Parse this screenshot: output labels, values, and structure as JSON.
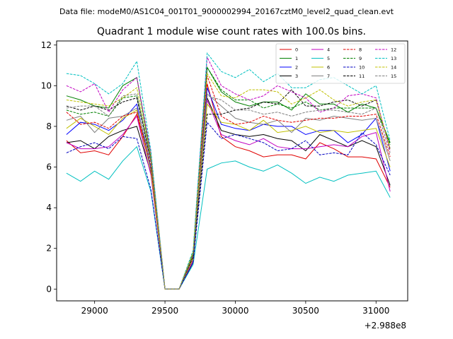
{
  "header": {
    "file_line": "Data file: modeM0/AS1C04_001T01_9000002994_20167cztM0_level2_quad_clean.evt"
  },
  "chart_data": {
    "type": "line",
    "title": "Quadrant 1 module wise count rates with 100.0s bins.",
    "xlabel": "",
    "ylabel": "",
    "x_offset_label": "+2.988e8",
    "xlim": [
      28730,
      31225
    ],
    "ylim": [
      -0.58,
      12.2
    ],
    "xticks": [
      29000,
      29500,
      30000,
      30500,
      31000
    ],
    "xtick_labels": [
      "29000",
      "29500",
      "30000",
      "30500",
      "31000"
    ],
    "yticks": [
      0,
      2,
      4,
      6,
      8,
      10,
      12
    ],
    "ytick_labels": [
      "0",
      "2",
      "4",
      "6",
      "8",
      "10",
      "12"
    ],
    "grid": false,
    "legend_position": "top-right",
    "x": [
      28800,
      28900,
      29000,
      29100,
      29200,
      29300,
      29400,
      29500,
      29600,
      29700,
      29800,
      29900,
      30000,
      30100,
      30200,
      30300,
      30400,
      30500,
      30600,
      30700,
      30800,
      30900,
      31000,
      31100
    ],
    "series": [
      {
        "name": "0",
        "color": "#e00000",
        "dash": "solid",
        "values": [
          7.3,
          6.7,
          6.8,
          6.6,
          7.5,
          8.6,
          5.9,
          0.0,
          0.0,
          1.5,
          10.1,
          7.5,
          7.0,
          6.8,
          6.5,
          6.6,
          6.6,
          6.4,
          7.2,
          6.9,
          6.5,
          6.5,
          6.4,
          5.0
        ]
      },
      {
        "name": "1",
        "color": "#008000",
        "dash": "solid",
        "values": [
          9.5,
          9.3,
          9.0,
          8.9,
          10.0,
          10.4,
          6.5,
          0.0,
          0.0,
          1.8,
          10.9,
          9.7,
          9.2,
          9.0,
          9.2,
          9.2,
          8.8,
          9.6,
          9.1,
          9.1,
          8.7,
          9.1,
          8.9,
          7.2
        ]
      },
      {
        "name": "2",
        "color": "#0000ff",
        "dash": "solid",
        "values": [
          7.6,
          8.2,
          8.1,
          7.8,
          8.3,
          9.1,
          5.9,
          0.0,
          0.0,
          1.4,
          9.9,
          8.1,
          7.9,
          7.8,
          8.1,
          8.0,
          8.0,
          7.6,
          7.8,
          7.8,
          7.2,
          7.6,
          8.4,
          5.8
        ]
      },
      {
        "name": "3",
        "color": "#000000",
        "dash": "solid",
        "values": [
          7.2,
          7.3,
          6.9,
          7.5,
          7.8,
          8.0,
          5.7,
          0.0,
          0.0,
          1.3,
          9.4,
          7.8,
          7.6,
          7.5,
          7.6,
          7.4,
          7.3,
          6.8,
          7.6,
          7.3,
          7.0,
          7.3,
          7.0,
          5.1
        ]
      },
      {
        "name": "4",
        "color": "#c000c0",
        "dash": "solid",
        "values": [
          7.2,
          6.9,
          6.9,
          7.0,
          7.6,
          8.5,
          5.6,
          0.0,
          0.0,
          1.4,
          9.3,
          7.6,
          7.3,
          7.1,
          7.4,
          7.0,
          6.9,
          6.9,
          7.0,
          7.1,
          7.0,
          7.5,
          7.7,
          4.8
        ]
      },
      {
        "name": "5",
        "color": "#00c0c0",
        "dash": "solid",
        "values": [
          5.7,
          5.3,
          5.8,
          5.4,
          6.3,
          7.0,
          4.8,
          0.0,
          0.0,
          1.2,
          5.9,
          6.2,
          6.3,
          6.0,
          5.8,
          6.1,
          5.7,
          5.2,
          5.5,
          5.3,
          5.6,
          5.7,
          5.8,
          4.5
        ]
      },
      {
        "name": "6",
        "color": "#c0c000",
        "dash": "solid",
        "values": [
          7.9,
          8.4,
          8.0,
          7.6,
          8.4,
          8.8,
          5.8,
          0.0,
          0.0,
          1.5,
          9.1,
          8.2,
          8.1,
          7.8,
          8.3,
          7.7,
          7.8,
          8.0,
          7.7,
          7.8,
          7.7,
          7.8,
          7.9,
          6.0
        ]
      },
      {
        "name": "7",
        "color": "#808080",
        "dash": "solid",
        "values": [
          8.3,
          8.5,
          7.7,
          8.4,
          8.5,
          8.9,
          6.3,
          0.0,
          0.0,
          1.6,
          9.6,
          9.0,
          8.4,
          8.2,
          8.1,
          8.3,
          7.7,
          8.4,
          8.3,
          8.5,
          8.4,
          8.3,
          8.4,
          6.3
        ]
      },
      {
        "name": "8",
        "color": "#e00000",
        "dash": "dashed",
        "values": [
          8.7,
          8.1,
          8.2,
          7.9,
          8.5,
          8.7,
          6.1,
          0.0,
          0.0,
          1.6,
          10.5,
          8.5,
          8.1,
          8.2,
          8.5,
          8.3,
          8.2,
          8.3,
          8.4,
          8.4,
          8.5,
          8.5,
          8.6,
          6.5
        ]
      },
      {
        "name": "9",
        "color": "#008000",
        "dash": "dashed",
        "values": [
          8.8,
          8.6,
          8.7,
          8.5,
          9.4,
          9.5,
          6.4,
          0.0,
          0.0,
          1.7,
          10.9,
          9.8,
          9.3,
          9.3,
          8.9,
          9.1,
          8.9,
          9.2,
          8.8,
          8.9,
          8.9,
          8.9,
          8.9,
          7.1
        ]
      },
      {
        "name": "10",
        "color": "#0000c0",
        "dash": "dashed",
        "values": [
          6.7,
          7.0,
          7.2,
          6.9,
          7.5,
          7.4,
          4.9,
          0.0,
          0.0,
          1.3,
          8.2,
          7.4,
          7.6,
          7.4,
          7.2,
          6.8,
          6.9,
          7.3,
          6.6,
          6.7,
          6.6,
          7.7,
          7.1,
          5.6
        ]
      },
      {
        "name": "11",
        "color": "#000000",
        "dash": "dashed",
        "values": [
          9.0,
          8.8,
          9.0,
          8.8,
          9.2,
          9.4,
          6.3,
          0.0,
          0.0,
          1.6,
          8.6,
          8.6,
          8.8,
          8.9,
          9.2,
          9.1,
          9.8,
          9.0,
          9.0,
          9.2,
          9.3,
          9.0,
          9.3,
          6.9
        ]
      },
      {
        "name": "12",
        "color": "#c000c0",
        "dash": "dashed",
        "values": [
          10.0,
          9.7,
          10.1,
          8.7,
          9.8,
          10.4,
          6.7,
          0.0,
          0.0,
          1.8,
          11.4,
          10.0,
          9.6,
          9.3,
          9.5,
          10.0,
          9.7,
          9.4,
          8.7,
          8.9,
          9.5,
          9.6,
          9.4,
          6.8
        ]
      },
      {
        "name": "13",
        "color": "#00c0c0",
        "dash": "dashed",
        "values": [
          10.6,
          10.5,
          10.1,
          9.6,
          10.1,
          11.2,
          6.8,
          0.0,
          0.0,
          1.9,
          11.6,
          10.7,
          10.4,
          10.8,
          10.2,
          10.6,
          9.9,
          9.9,
          10.3,
          10.4,
          10.0,
          9.6,
          10.0,
          7.3
        ]
      },
      {
        "name": "14",
        "color": "#c0c000",
        "dash": "dashed",
        "values": [
          9.3,
          9.2,
          9.1,
          9.0,
          9.4,
          9.9,
          6.5,
          0.0,
          0.0,
          1.8,
          10.6,
          9.5,
          9.4,
          9.8,
          9.8,
          9.7,
          9.1,
          9.4,
          9.8,
          9.3,
          9.0,
          9.2,
          9.3,
          6.9
        ]
      },
      {
        "name": "15",
        "color": "#808080",
        "dash": "dashed",
        "values": [
          8.9,
          9.0,
          9.0,
          8.5,
          9.5,
          9.6,
          6.4,
          0.0,
          0.0,
          1.7,
          9.5,
          9.3,
          8.8,
          8.8,
          8.6,
          8.7,
          8.5,
          8.7,
          8.8,
          8.8,
          8.7,
          8.6,
          8.9,
          6.7
        ]
      }
    ]
  }
}
